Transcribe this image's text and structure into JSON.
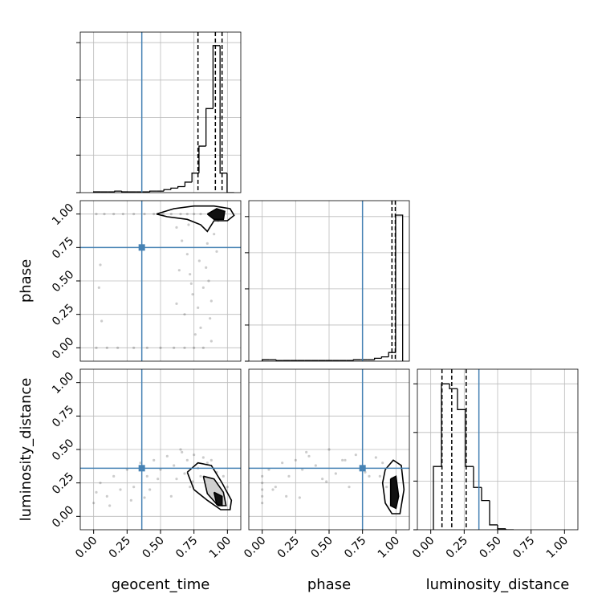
{
  "chart_data": {
    "type": "corner",
    "truth_color": "#4682b4",
    "grid": true,
    "axes": [
      {
        "label": "geocent_time",
        "lim": [
          -0.1,
          1.1
        ],
        "truth": 0.36,
        "ticks": [
          {
            "value": 0,
            "label": "0.00"
          },
          {
            "value": 0.25,
            "label": "0.25"
          },
          {
            "value": 0.5,
            "label": "0.50"
          },
          {
            "value": 0.75,
            "label": "0.75"
          },
          {
            "value": 1,
            "label": "1.00"
          }
        ]
      },
      {
        "label": "phase",
        "lim": [
          -0.1,
          1.1
        ],
        "truth": 0.75,
        "ticks": [
          {
            "value": 0,
            "label": "0.00"
          },
          {
            "value": 0.25,
            "label": "0.25"
          },
          {
            "value": 0.5,
            "label": "0.50"
          },
          {
            "value": 0.75,
            "label": "0.75"
          },
          {
            "value": 1,
            "label": "1.00"
          }
        ]
      },
      {
        "label": "luminosity_distance",
        "lim": [
          -0.1,
          1.1
        ],
        "truth": 0.36,
        "ticks": [
          {
            "value": 0,
            "label": "0.00"
          },
          {
            "value": 0.25,
            "label": "0.25"
          },
          {
            "value": 0.5,
            "label": "0.50"
          },
          {
            "value": 0.75,
            "label": "0.75"
          },
          {
            "value": 1,
            "label": "1.00"
          }
        ]
      }
    ],
    "histograms": [
      {
        "bins": [
          0,
          0.0525,
          0.105,
          0.1575,
          0.21,
          0.2625,
          0.315,
          0.3675,
          0.42,
          0.4725,
          0.525,
          0.5775,
          0.63,
          0.6825,
          0.735,
          0.7875,
          0.84,
          0.8925,
          0.945,
          0.9975,
          1.05
        ],
        "values": [
          0.005,
          0.005,
          0.005,
          0.01,
          0.005,
          0.005,
          0.005,
          0.005,
          0.01,
          0.01,
          0.02,
          0.03,
          0.04,
          0.07,
          0.13,
          0.31,
          0.56,
          0.98,
          0.13,
          0
        ],
        "ylim": [
          0,
          1.07
        ],
        "yticks": [
          0,
          0.25,
          0.5,
          0.75,
          1
        ],
        "quantiles": [
          0.78,
          0.91,
          0.96
        ]
      },
      {
        "bins": [
          0,
          0.0525,
          0.105,
          0.1575,
          0.21,
          0.2625,
          0.315,
          0.3675,
          0.42,
          0.4725,
          0.525,
          0.5775,
          0.63,
          0.6825,
          0.735,
          0.7875,
          0.84,
          0.8925,
          0.945,
          0.9975,
          1.05
        ],
        "values": [
          0.01,
          0.01,
          0.005,
          0.005,
          0.005,
          0.005,
          0.005,
          0.005,
          0.005,
          0.005,
          0.005,
          0.005,
          0.005,
          0.01,
          0.01,
          0.01,
          0.02,
          0.03,
          0.06,
          1.01
        ],
        "ylim": [
          0,
          1.11
        ],
        "yticks": [
          0,
          0.25,
          0.5,
          0.75,
          1
        ],
        "quantiles": [
          0.97,
          0.995
        ]
      },
      {
        "bins": [
          0.02,
          0.08,
          0.14,
          0.2,
          0.26,
          0.32,
          0.38,
          0.44,
          0.5,
          0.56,
          0.62
        ],
        "values": [
          1.3,
          3.0,
          2.9,
          2.47,
          1.3,
          0.87,
          0.6,
          0.1,
          0.02,
          0
        ],
        "ylim": [
          0,
          3.3
        ],
        "yticks": [
          0,
          1,
          2,
          3
        ],
        "quantiles": [
          0.084,
          0.157,
          0.265
        ]
      }
    ],
    "scatter": [
      {
        "x_axis": 0,
        "y_axis": 1,
        "x": [
          0.02,
          0.08,
          0.15,
          0.22,
          0.3,
          0.38,
          0.45,
          0.52,
          0.58,
          0.65,
          0.7,
          0.75,
          0.8,
          0.02,
          0.1,
          0.18,
          0.3,
          0.4,
          0.5,
          0.6,
          0.68,
          0.75,
          0.82,
          0.05,
          0.04,
          0.06,
          0.62,
          0.66,
          0.7,
          0.72,
          0.74,
          0.78,
          0.8,
          0.84,
          0.86,
          0.88,
          0.9,
          0.92,
          0.68,
          0.76,
          0.82,
          0.88,
          0.64,
          0.71,
          0.79,
          0.85,
          0.93,
          0.62,
          0.73,
          0.87
        ],
        "y": [
          1,
          1,
          1,
          1,
          1,
          1,
          1,
          1,
          1,
          1,
          1,
          1,
          1,
          0,
          0,
          0,
          0,
          0,
          0,
          0,
          0,
          0,
          0,
          0.62,
          0.45,
          0.2,
          0.9,
          0.8,
          0.7,
          0.55,
          0.4,
          0.3,
          0.15,
          0.6,
          0.5,
          0.35,
          0.85,
          0.72,
          0.25,
          0.1,
          0.45,
          0.05,
          0.58,
          0.92,
          0.65,
          0.78,
          0.95,
          0.33,
          0.48,
          0.22
        ],
        "contours": [
          {
            "x": [
              0.47,
              0.6,
              0.75,
              0.9,
              1.02,
              1.05,
              1.0,
              0.9,
              0.85,
              0.8,
              0.7,
              0.55,
              0.47
            ],
            "y": [
              1.0,
              1.04,
              1.06,
              1.06,
              1.04,
              0.99,
              0.95,
              0.95,
              0.87,
              0.92,
              0.96,
              0.98,
              1.0
            ]
          },
          {
            "x": [
              0.85,
              0.92,
              0.98,
              0.97,
              0.9,
              0.85
            ],
            "y": [
              1.0,
              1.04,
              1.02,
              0.96,
              0.96,
              1.0
            ]
          }
        ]
      },
      {
        "x_axis": 0,
        "y_axis": 2,
        "x": [
          0.0,
          0.05,
          0.1,
          0.15,
          0.2,
          0.25,
          0.3,
          0.35,
          0.4,
          0.45,
          0.5,
          0.55,
          0.6,
          0.62,
          0.65,
          0.68,
          0.7,
          0.72,
          0.75,
          0.78,
          0.8,
          0.82,
          0.85,
          0.02,
          0.12,
          0.28,
          0.42,
          0.58,
          0.66,
          0.74,
          0.88,
          0.92,
          0.97,
          1.0,
          0.48,
          0.38
        ],
        "y": [
          0.1,
          0.25,
          0.15,
          0.3,
          0.2,
          0.35,
          0.22,
          0.4,
          0.3,
          0.42,
          0.35,
          0.45,
          0.38,
          0.28,
          0.5,
          0.32,
          0.42,
          0.22,
          0.46,
          0.36,
          0.3,
          0.44,
          0.4,
          0.18,
          0.08,
          0.12,
          0.2,
          0.15,
          0.48,
          0.26,
          0.42,
          0.33,
          0.3,
          0.22,
          0.28,
          0.14
        ],
        "contours": [
          {
            "x": [
              0.7,
              0.78,
              0.88,
              0.96,
              1.03,
              1.02,
              0.95,
              0.85,
              0.75,
              0.7
            ],
            "y": [
              0.33,
              0.4,
              0.38,
              0.25,
              0.12,
              0.05,
              0.05,
              0.12,
              0.2,
              0.33
            ]
          },
          {
            "x": [
              0.82,
              0.9,
              0.97,
              0.99,
              0.93,
              0.85,
              0.82
            ],
            "y": [
              0.3,
              0.28,
              0.18,
              0.08,
              0.08,
              0.17,
              0.3
            ]
          },
          {
            "x": [
              0.9,
              0.96,
              0.96,
              0.92,
              0.9
            ],
            "y": [
              0.18,
              0.15,
              0.08,
              0.09,
              0.18
            ]
          }
        ]
      },
      {
        "x_axis": 1,
        "y_axis": 2,
        "x": [
          0,
          0,
          0,
          0,
          0,
          0.05,
          0.1,
          0.15,
          0.2,
          0.25,
          0.3,
          0.35,
          0.4,
          0.45,
          0.5,
          0.55,
          0.6,
          0.65,
          0.7,
          0.75,
          0.8,
          0.85,
          0.9,
          1,
          1,
          1,
          0.08,
          0.18,
          0.33,
          0.48,
          0.62,
          0.77,
          0.88,
          0.93,
          0.97,
          0.28
        ],
        "y": [
          0.1,
          0.25,
          0.15,
          0.3,
          0.2,
          0.35,
          0.22,
          0.4,
          0.3,
          0.42,
          0.35,
          0.45,
          0.38,
          0.28,
          0.5,
          0.32,
          0.42,
          0.22,
          0.46,
          0.36,
          0.3,
          0.44,
          0.4,
          0.18,
          0.08,
          0.12,
          0.2,
          0.15,
          0.48,
          0.26,
          0.42,
          0.33,
          0.3,
          0.22,
          0.28,
          0.14
        ],
        "contours": [
          {
            "x": [
              0.92,
              0.98,
              1.04,
              1.06,
              1.03,
              0.97,
              0.92,
              0.9,
              0.92
            ],
            "y": [
              0.35,
              0.42,
              0.38,
              0.2,
              0.02,
              0.02,
              0.1,
              0.25,
              0.35
            ]
          },
          {
            "x": [
              0.96,
              1.0,
              1.02,
              1.0,
              0.96,
              0.96
            ],
            "y": [
              0.28,
              0.3,
              0.15,
              0.06,
              0.08,
              0.28
            ]
          }
        ]
      }
    ]
  }
}
